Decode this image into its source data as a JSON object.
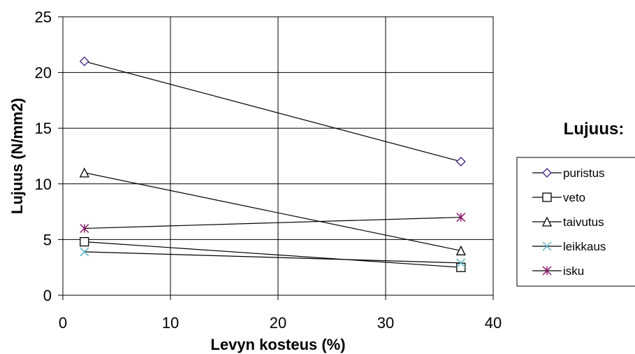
{
  "chart_data": {
    "type": "line",
    "xlabel": "Levyn kosteus (%)",
    "ylabel": "Lujuus (N/mm2)",
    "legend_title": "Lujuus:",
    "xlim": [
      0,
      40
    ],
    "ylim": [
      0,
      25
    ],
    "xticks": [
      0,
      10,
      20,
      30,
      40
    ],
    "yticks": [
      0,
      5,
      10,
      15,
      20,
      25
    ],
    "grid": true,
    "legend_placement": "right",
    "series": [
      {
        "name": "puristus",
        "x": [
          2,
          37
        ],
        "y": [
          21,
          12
        ],
        "marker": "diamond",
        "color": "#3d1e84"
      },
      {
        "name": "veto",
        "x": [
          2,
          37
        ],
        "y": [
          4.8,
          2.5
        ],
        "marker": "square",
        "color": "#000000"
      },
      {
        "name": "taivutus",
        "x": [
          2,
          37
        ],
        "y": [
          11,
          4
        ],
        "marker": "triangle",
        "color": "#000000"
      },
      {
        "name": "leikkaus",
        "x": [
          2,
          37
        ],
        "y": [
          3.9,
          2.9
        ],
        "marker": "x",
        "color": "#5fb7c9"
      },
      {
        "name": "isku",
        "x": [
          2,
          37
        ],
        "y": [
          6,
          7
        ],
        "marker": "star",
        "color": "#8b1a6b"
      }
    ]
  }
}
